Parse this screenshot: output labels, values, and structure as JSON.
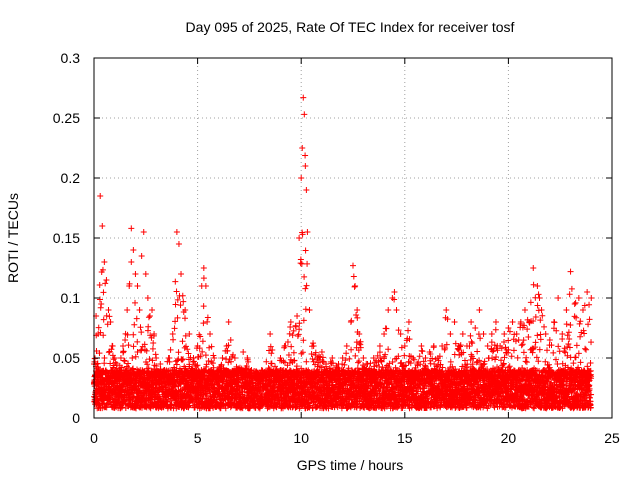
{
  "chart_data": {
    "type": "scatter",
    "title": "Day 095 of 2025, Rate Of TEC Index for receiver tosf",
    "xlabel": "GPS time / hours",
    "ylabel": "ROTI / TECUs",
    "xlim": [
      0,
      25
    ],
    "ylim": [
      0,
      0.3
    ],
    "xticks": [
      0,
      5,
      10,
      15,
      20,
      25
    ],
    "xtick_labels": [
      "0",
      "5",
      "10",
      "15",
      "20",
      "25"
    ],
    "yticks": [
      0,
      0.05,
      0.1,
      0.15,
      0.2,
      0.25,
      0.3
    ],
    "ytick_labels": [
      "0",
      "0.05",
      "0.1",
      "0.15",
      "0.2",
      "0.25",
      "0.3"
    ],
    "grid": true,
    "marker": "+",
    "color": "#ff0000",
    "series": [
      {
        "name": "ROTI",
        "x": [
          0.0,
          0.1,
          0.2,
          0.3,
          0.4,
          0.5,
          0.6,
          0.7,
          0.8,
          0.9,
          1.0,
          1.1,
          1.2,
          1.3,
          1.4,
          1.5,
          1.6,
          1.7,
          1.8,
          1.9,
          2.0,
          2.1,
          2.2,
          2.3,
          2.4,
          2.5,
          2.6,
          2.7,
          2.8,
          2.9,
          3.0,
          3.2,
          3.4,
          3.6,
          3.8,
          4.0,
          4.1,
          4.2,
          4.4,
          4.6,
          4.8,
          5.0,
          5.2,
          5.3,
          5.4,
          5.6,
          5.8,
          6.0,
          6.2,
          6.4,
          6.5,
          6.6,
          6.8,
          7.0,
          7.2,
          7.4,
          7.6,
          7.8,
          8.0,
          8.2,
          8.5,
          8.8,
          9.0,
          9.2,
          9.5,
          9.8,
          9.9,
          10.0,
          10.05,
          10.1,
          10.15,
          10.2,
          10.25,
          10.3,
          10.4,
          10.6,
          10.8,
          11.0,
          11.2,
          11.5,
          11.8,
          12.0,
          12.2,
          12.4,
          12.5,
          12.6,
          12.7,
          12.8,
          13.0,
          13.2,
          13.5,
          13.8,
          14.0,
          14.2,
          14.4,
          14.5,
          14.6,
          14.8,
          15.0,
          15.2,
          15.4,
          15.6,
          15.8,
          16.0,
          16.2,
          16.4,
          16.6,
          16.8,
          17.0,
          17.2,
          17.4,
          17.6,
          17.8,
          18.0,
          18.2,
          18.4,
          18.6,
          18.8,
          19.0,
          19.2,
          19.4,
          19.6,
          19.8,
          20.0,
          20.2,
          20.4,
          20.6,
          20.8,
          21.0,
          21.2,
          21.4,
          21.5,
          21.6,
          21.8,
          22.0,
          22.2,
          22.4,
          22.6,
          22.8,
          23.0,
          23.2,
          23.4,
          23.6,
          23.8,
          24.0
        ],
        "y": [
          0.045,
          0.085,
          0.07,
          0.185,
          0.16,
          0.13,
          0.115,
          0.09,
          0.08,
          0.06,
          0.05,
          0.045,
          0.04,
          0.05,
          0.06,
          0.065,
          0.09,
          0.11,
          0.158,
          0.14,
          0.12,
          0.11,
          0.09,
          0.135,
          0.155,
          0.12,
          0.1,
          0.085,
          0.09,
          0.07,
          0.05,
          0.045,
          0.04,
          0.05,
          0.07,
          0.155,
          0.145,
          0.12,
          0.09,
          0.07,
          0.05,
          0.06,
          0.11,
          0.125,
          0.11,
          0.07,
          0.05,
          0.04,
          0.05,
          0.06,
          0.08,
          0.065,
          0.05,
          0.04,
          0.055,
          0.05,
          0.04,
          0.035,
          0.03,
          0.035,
          0.07,
          0.04,
          0.05,
          0.06,
          0.08,
          0.085,
          0.15,
          0.2,
          0.225,
          0.267,
          0.253,
          0.21,
          0.19,
          0.155,
          0.09,
          0.06,
          0.05,
          0.055,
          0.045,
          0.05,
          0.045,
          0.05,
          0.06,
          0.08,
          0.127,
          0.11,
          0.09,
          0.07,
          0.05,
          0.045,
          0.05,
          0.06,
          0.07,
          0.09,
          0.1,
          0.105,
          0.09,
          0.07,
          0.06,
          0.08,
          0.05,
          0.045,
          0.06,
          0.05,
          0.055,
          0.06,
          0.05,
          0.06,
          0.09,
          0.07,
          0.08,
          0.06,
          0.07,
          0.06,
          0.08,
          0.075,
          0.09,
          0.07,
          0.06,
          0.07,
          0.08,
          0.06,
          0.07,
          0.075,
          0.08,
          0.07,
          0.08,
          0.09,
          0.08,
          0.125,
          0.11,
          0.1,
          0.09,
          0.07,
          0.065,
          0.08,
          0.1,
          0.07,
          0.09,
          0.122,
          0.095,
          0.1,
          0.09,
          0.105,
          0.1
        ]
      }
    ]
  }
}
